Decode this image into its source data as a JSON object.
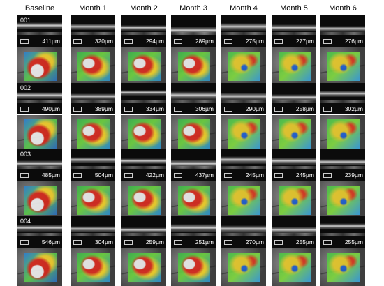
{
  "columns": [
    "Baseline",
    "Month 1",
    "Month 2",
    "Month 3",
    "Month 4",
    "Month 5",
    "Month 6"
  ],
  "rows": [
    {
      "id": "001",
      "values": [
        "411µm",
        "320µm",
        "294µm",
        "289µm",
        "275µm",
        "277µm",
        "276µm"
      ]
    },
    {
      "id": "002",
      "values": [
        "490µm",
        "389µm",
        "334µm",
        "306µm",
        "290µm",
        "258µm",
        "302µm"
      ]
    },
    {
      "id": "003",
      "values": [
        "485µm",
        "504µm",
        "422µm",
        "437µm",
        "245µm",
        "245µm",
        "239µm"
      ]
    },
    {
      "id": "004",
      "values": [
        "546µm",
        "304µm",
        "259µm",
        "251µm",
        "270µm",
        "255µm",
        "255µm"
      ]
    }
  ]
}
